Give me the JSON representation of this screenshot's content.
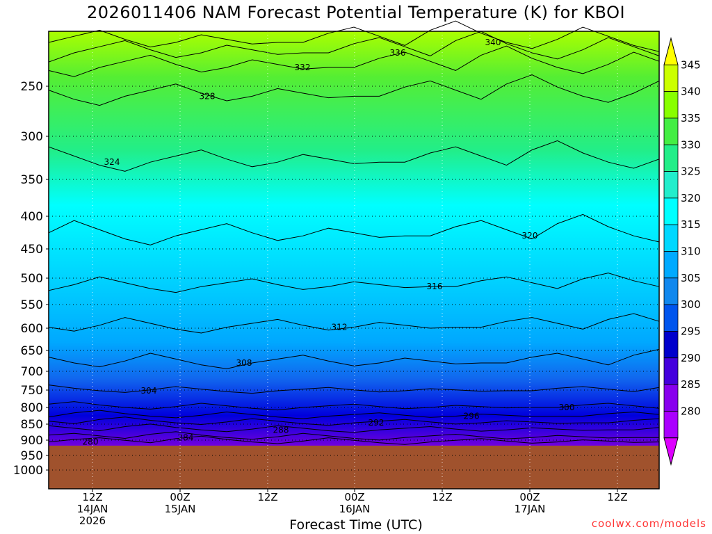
{
  "chart_data": {
    "type": "heatmap",
    "title": "2026011406 NAM Forecast Potential Temperature (K) for KBOI",
    "xlabel": "Forecast Time (UTC)",
    "ylabel": "",
    "y_axis": {
      "scale": "pressure",
      "direction": "decreasing-upward",
      "ticks": [
        250,
        300,
        350,
        400,
        450,
        500,
        550,
        600,
        650,
        700,
        750,
        800,
        850,
        900,
        950,
        1000
      ],
      "tick_labels": [
        "250",
        "300",
        "350",
        "400",
        "450",
        "500",
        "550",
        "600",
        "650",
        "700",
        "750",
        "800",
        "850",
        "900",
        "950",
        "1000"
      ],
      "grid": "dotted"
    },
    "x_axis": {
      "ticks": [
        {
          "time": "2026-01-14 12Z",
          "lines": [
            "12Z",
            "14JAN",
            "2026"
          ]
        },
        {
          "time": "2026-01-15 00Z",
          "lines": [
            "00Z",
            "15JAN"
          ]
        },
        {
          "time": "2026-01-15 12Z",
          "lines": [
            "12Z"
          ]
        },
        {
          "time": "2026-01-16 00Z",
          "lines": [
            "00Z",
            "16JAN"
          ]
        },
        {
          "time": "2026-01-16 12Z",
          "lines": [
            "12Z"
          ]
        },
        {
          "time": "2026-01-17 00Z",
          "lines": [
            "00Z",
            "17JAN"
          ]
        },
        {
          "time": "2026-01-17 12Z",
          "lines": [
            "12Z"
          ]
        }
      ],
      "grid": "dotted"
    },
    "colorbar": {
      "units": "K",
      "labels": [
        "345",
        "340",
        "335",
        "330",
        "325",
        "320",
        "315",
        "310",
        "305",
        "300",
        "295",
        "290",
        "285",
        "280"
      ],
      "colors": [
        "#ffff00",
        "#ccff00",
        "#88ff00",
        "#44ee44",
        "#22ee88",
        "#22eecc",
        "#00ffff",
        "#00d8ff",
        "#00aaff",
        "#1188ee",
        "#0055ee",
        "#0000cc",
        "#4400dd",
        "#8800ee",
        "#aa00ff",
        "#dd00ff"
      ]
    },
    "terrain": {
      "color": "#a0522d",
      "surface_pressure": 918
    },
    "contours": [
      {
        "level": 280,
        "label": "280",
        "pressure": 906
      },
      {
        "level": 284,
        "label": "284",
        "pressure": 892
      },
      {
        "level": 288,
        "label": "288",
        "pressure": 868
      },
      {
        "level": 292,
        "label": "292",
        "pressure": 846
      },
      {
        "level": 296,
        "label": "296",
        "pressure": 826
      },
      {
        "level": 300,
        "label": "300",
        "pressure": 800
      },
      {
        "level": 304,
        "label": "304",
        "pressure": 752
      },
      {
        "level": 308,
        "label": "308",
        "pressure": 680
      },
      {
        "level": 312,
        "label": "312",
        "pressure": 598
      },
      {
        "level": 316,
        "label": "316",
        "pressure": 516
      },
      {
        "level": 320,
        "label": "320",
        "pressure": 430
      },
      {
        "level": 324,
        "label": "324",
        "pressure": 330
      },
      {
        "level": 328,
        "label": "328",
        "pressure": 260
      },
      {
        "level": 332,
        "label": "332",
        "pressure": 232
      },
      {
        "level": 336,
        "label": "336",
        "pressure": 218
      },
      {
        "level": 340,
        "label": "340",
        "pressure": 208
      }
    ]
  },
  "credit": "coolwx.com/models"
}
